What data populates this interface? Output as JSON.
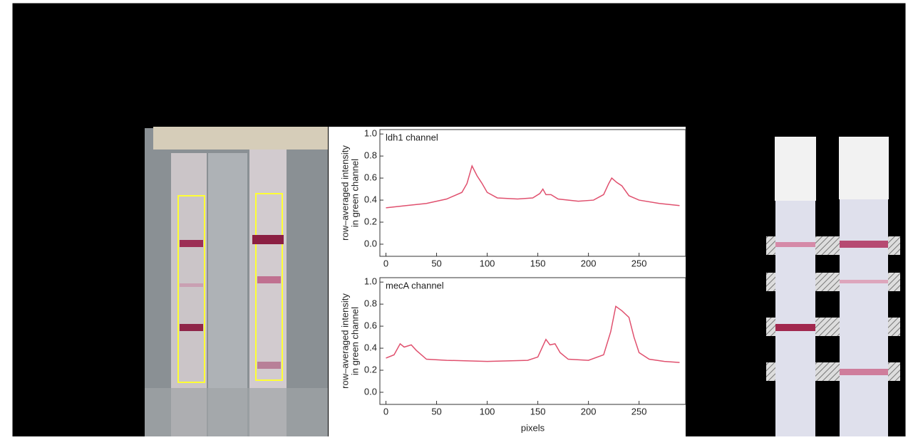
{
  "chart_data": [
    {
      "type": "line",
      "title": "ldh1 channel",
      "ylabel": [
        "row–averaged intensity",
        "in green channel"
      ],
      "x": [
        0,
        20,
        40,
        60,
        75,
        80,
        85,
        90,
        95,
        100,
        110,
        130,
        145,
        152,
        155,
        158,
        163,
        170,
        190,
        205,
        215,
        220,
        223,
        228,
        233,
        240,
        250,
        270,
        290
      ],
      "values": [
        0.33,
        0.35,
        0.37,
        0.41,
        0.47,
        0.55,
        0.71,
        0.62,
        0.55,
        0.47,
        0.42,
        0.41,
        0.42,
        0.46,
        0.5,
        0.45,
        0.45,
        0.41,
        0.39,
        0.4,
        0.45,
        0.55,
        0.6,
        0.56,
        0.53,
        0.44,
        0.4,
        0.37,
        0.35
      ],
      "color": "#e0506e",
      "xlim": [
        -6,
        296
      ],
      "ylim": [
        -0.11,
        1.04
      ],
      "xticks": [
        0,
        50,
        100,
        150,
        200,
        250
      ],
      "yticks": [
        {
          "value": 0,
          "label": "0.0"
        },
        {
          "value": 0.2,
          "label": "0.2"
        },
        {
          "value": 0.4,
          "label": "0.4"
        },
        {
          "value": 0.6,
          "label": "0.6"
        },
        {
          "value": 0.8,
          "label": "0.8"
        },
        {
          "value": 1,
          "label": "1.0"
        }
      ]
    },
    {
      "type": "line",
      "title": "mecA channel",
      "ylabel": [
        "row–averaged intensity",
        "in green channel"
      ],
      "xlabel": "pixels",
      "x": [
        0,
        8,
        14,
        18,
        25,
        30,
        40,
        60,
        100,
        140,
        150,
        155,
        158,
        162,
        167,
        172,
        180,
        200,
        215,
        222,
        227,
        233,
        240,
        245,
        250,
        260,
        275,
        290
      ],
      "values": [
        0.31,
        0.34,
        0.44,
        0.41,
        0.43,
        0.38,
        0.3,
        0.29,
        0.28,
        0.29,
        0.32,
        0.42,
        0.48,
        0.43,
        0.44,
        0.36,
        0.3,
        0.29,
        0.34,
        0.55,
        0.78,
        0.74,
        0.68,
        0.5,
        0.36,
        0.3,
        0.28,
        0.27
      ],
      "color": "#e0506e",
      "xlim": [
        -6,
        296
      ],
      "ylim": [
        -0.11,
        1.04
      ],
      "xticks": [
        0,
        50,
        100,
        150,
        200,
        250
      ],
      "yticks": [
        {
          "value": 0,
          "label": "0.0"
        },
        {
          "value": 0.2,
          "label": "0.2"
        },
        {
          "value": 0.4,
          "label": "0.4"
        },
        {
          "value": 0.6,
          "label": "0.6"
        },
        {
          "value": 0.8,
          "label": "0.8"
        },
        {
          "value": 1,
          "label": "1.0"
        }
      ]
    }
  ]
}
